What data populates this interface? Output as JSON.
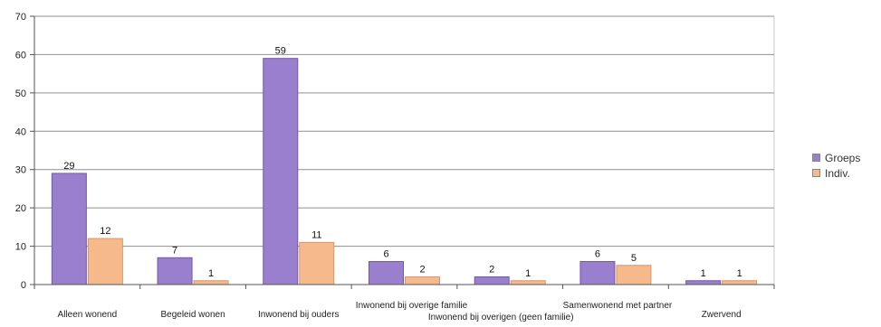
{
  "chart_data": {
    "type": "bar",
    "categories": [
      "Alleen wonend",
      "Begeleid wonen",
      "Inwonend bij ouders",
      "Inwonend bij overige familie",
      "Inwonend bij overigen (geen familie)",
      "Samenwonend met partner",
      "Zwervend"
    ],
    "series": [
      {
        "name": "Groeps",
        "values": [
          29,
          7,
          59,
          6,
          2,
          6,
          1
        ],
        "color": "#9b7fcf"
      },
      {
        "name": "Indiv.",
        "values": [
          12,
          1,
          11,
          2,
          1,
          5,
          1
        ],
        "color": "#f6b98c"
      }
    ],
    "ylim": [
      0,
      70
    ],
    "yticks": [
      0,
      10,
      20,
      30,
      40,
      50,
      60,
      70
    ],
    "grid": true,
    "legend_position": "right"
  }
}
